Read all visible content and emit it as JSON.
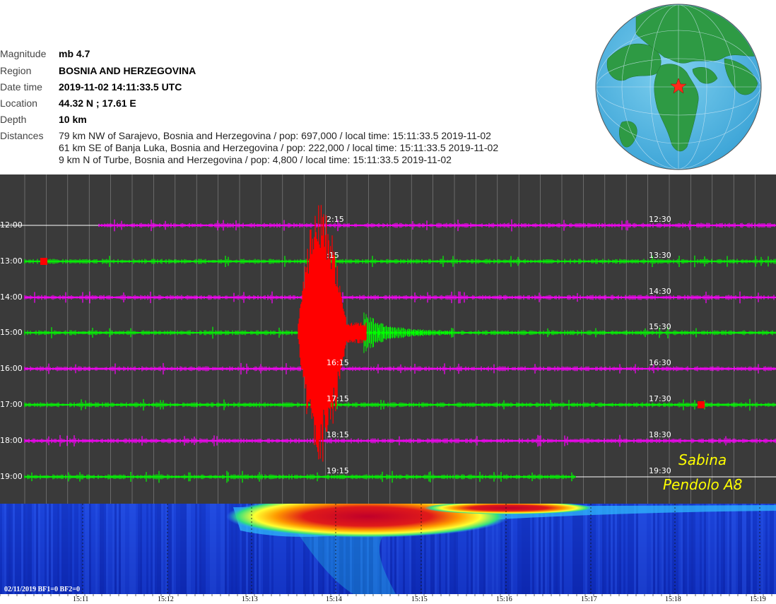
{
  "event": {
    "labels": {
      "magnitude": "Magnitude",
      "region": "Region",
      "datetime": "Date time",
      "location": "Location",
      "depth": "Depth",
      "distances": "Distances"
    },
    "magnitude": "mb 4.7",
    "region": "BOSNIA AND HERZEGOVINA",
    "datetime": "2019-11-02 14:11:33.5 UTC",
    "location": "44.32 N ; 17.61 E",
    "depth": "10 km",
    "distances": [
      "79 km NW of Sarajevo, Bosnia and Herzegovina / pop: 697,000 / local time: 15:11:33.5 2019-11-02",
      "61 km SE of Banja Luka, Bosnia and Herzegovina / pop: 222,000 / local time: 15:11:33.5 2019-11-02",
      "9 km N of Turbe, Bosnia and Herzegovina / pop: 4,800 / local time: 15:11:33.5 2019-11-02"
    ]
  },
  "helicorder": {
    "left_labels": [
      "12:00",
      "13:00",
      "14:00",
      "15:00",
      "16:00",
      "17:00",
      "18:00",
      "19:00"
    ],
    "right_labels": [
      "12:30",
      "13:30",
      "14:30",
      "15:30",
      "16:30",
      "17:30",
      "18:30",
      "19:30"
    ],
    "mid_labels": [
      "2:15",
      ":15",
      "",
      "",
      "16:15",
      "17:15",
      "18:15",
      "19:15"
    ],
    "colors": {
      "magenta": "#ff00ff",
      "green": "#00ff00",
      "quake": "#ff0000",
      "background": "#3a3a3a"
    },
    "station_name": "Sabina",
    "station_device": "Pendolo A8"
  },
  "spectrogram": {
    "caption": "02/11/2019 BF1=0 BF2=0",
    "time_ticks": [
      "15:11",
      "15:12",
      "15:13",
      "15:14",
      "15:15",
      "15:16",
      "15:17",
      "15:18",
      "15:19"
    ]
  },
  "globe": {
    "marker_icon": "epicenter-star-icon"
  }
}
